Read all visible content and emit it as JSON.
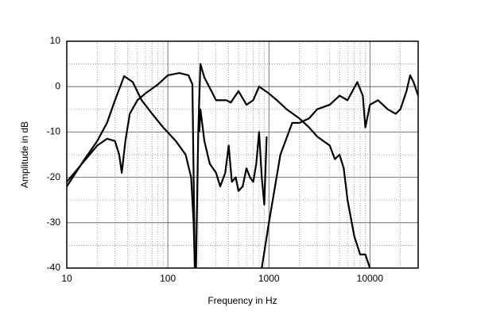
{
  "chart_data": {
    "type": "line",
    "x_label": "Frequency in Hz",
    "y_label": "Amplitude in dB",
    "log_x": true,
    "grid": true,
    "xlim": [
      10,
      30000
    ],
    "ylim": [
      -40,
      10
    ],
    "xticks": [
      10,
      100,
      1000,
      10000
    ],
    "yticks": [
      -40,
      -30,
      -20,
      -10,
      0,
      10
    ],
    "x_minor_ticks": [
      20,
      30,
      40,
      50,
      60,
      70,
      80,
      90,
      200,
      300,
      400,
      500,
      600,
      700,
      800,
      900,
      2000,
      3000,
      4000,
      5000,
      6000,
      7000,
      8000,
      9000,
      20000
    ],
    "y_minor_ticks": [
      -35,
      -25,
      -15,
      -5,
      5
    ],
    "series": [
      {
        "color": "#000000",
        "x": [
          10,
          15,
          20,
          25,
          30,
          37,
          45,
          55,
          70,
          90,
          120,
          150,
          170,
          180,
          185
        ],
        "values": [
          -22,
          -16,
          -12,
          -8,
          -3,
          2.3,
          1,
          -3,
          -6,
          -9,
          -12,
          -15,
          -20,
          -30,
          -40
        ]
      },
      {
        "color": "#000000",
        "x": [
          10,
          20,
          25,
          30,
          33,
          35,
          38,
          42,
          50,
          60,
          80,
          100,
          130,
          160,
          175,
          185
        ],
        "values": [
          -21,
          -13,
          -11.5,
          -12,
          -15,
          -19,
          -12,
          -6,
          -3,
          -1.5,
          0.5,
          2.5,
          3,
          2.5,
          0.5,
          -40
        ]
      },
      {
        "color": "#000000",
        "x": [
          190,
          200,
          210,
          230,
          270,
          300,
          380,
          420,
          500,
          600,
          700,
          800,
          1000,
          1200,
          1500,
          2000,
          2500,
          3000,
          4000,
          4500,
          5000,
          5500,
          6000,
          7000,
          8000,
          9000,
          10000
        ],
        "values": [
          -40,
          -10,
          5,
          2,
          -1,
          -3,
          -3,
          -3.5,
          -1,
          -4,
          -3,
          0,
          -1.5,
          -3,
          -5,
          -7,
          -9,
          -11,
          -13,
          -16,
          -15,
          -18,
          -25,
          -33,
          -37,
          -37,
          -40
        ]
      },
      {
        "color": "#000000",
        "x": [
          205,
          210,
          230,
          260,
          300,
          330,
          370,
          400,
          430,
          470,
          500,
          550,
          600,
          650,
          700,
          750,
          800,
          850,
          900,
          950
        ],
        "values": [
          -10,
          -5,
          -12,
          -17,
          -19,
          -22,
          -19,
          -13,
          -21,
          -20,
          -23,
          -22,
          -18,
          -20,
          -21,
          -17,
          -10,
          -20,
          -26,
          -11
        ]
      },
      {
        "color": "#000000",
        "x": [
          850,
          1000,
          1300,
          1700,
          2000,
          2500,
          3000,
          4000,
          5000,
          6000,
          7500,
          8500,
          9000,
          10000,
          12000,
          15000,
          18000,
          20000,
          23000,
          25000,
          27000,
          30000
        ],
        "values": [
          -40,
          -30,
          -15,
          -8,
          -8,
          -7,
          -5,
          -4,
          -2,
          -3,
          1,
          -2,
          -9,
          -4,
          -3,
          -5,
          -6,
          -5,
          -1,
          2.5,
          1,
          -2
        ]
      }
    ]
  }
}
